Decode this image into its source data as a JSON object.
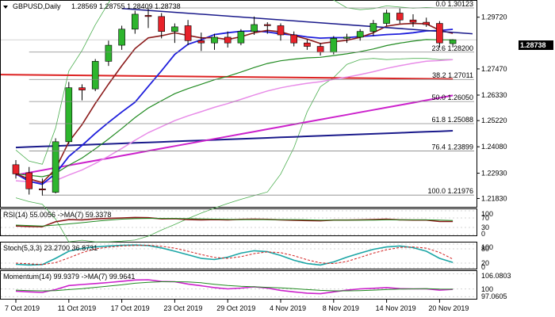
{
  "chart_data": [
    {
      "type": "candlestick",
      "title": "GBPUSD,Daily",
      "ohlc_header": "1.28569 1.28755 1.28409 1.28738",
      "current_price_label": "1.28738",
      "ylim": [
        1.215,
        1.304
      ],
      "y_ticks": [
        "1.29720",
        "1.27470",
        "1.26330",
        "1.25220",
        "1.24080",
        "1.22930",
        "1.21830"
      ],
      "y_tick_values": [
        1.2972,
        1.2747,
        1.2633,
        1.2522,
        1.2408,
        1.2293,
        1.2183
      ],
      "x_ticks": [
        "7 Oct 2019",
        "11 Oct 2019",
        "17 Oct 2019",
        "23 Oct 2019",
        "29 Oct 2019",
        "4 Nov 2019",
        "8 Nov 2019",
        "14 Nov 2019",
        "20 Nov 2019"
      ],
      "x_tick_index": [
        0,
        4,
        8,
        12,
        16,
        20,
        24,
        28,
        32
      ],
      "fib_levels": [
        {
          "label": "0.0 1.30123",
          "value": 1.30123
        },
        {
          "label": "23.6 1.28200",
          "value": 1.282
        },
        {
          "label": "38.2 1.27011",
          "value": 1.27011
        },
        {
          "label": "50.0 1.26050",
          "value": 1.2605
        },
        {
          "label": "61.8 1.25088",
          "value": 1.25088
        },
        {
          "label": "76.4 1.23899",
          "value": 1.23899
        },
        {
          "label": "100.0 1.21976",
          "value": 1.21976
        }
      ],
      "candles": [
        {
          "o": 1.233,
          "h": 1.235,
          "l": 1.227,
          "c": 1.229
        },
        {
          "o": 1.2295,
          "h": 1.232,
          "l": 1.22,
          "c": 1.2225
        },
        {
          "o": 1.2225,
          "h": 1.227,
          "l": 1.2195,
          "c": 1.222
        },
        {
          "o": 1.221,
          "h": 1.2445,
          "l": 1.2205,
          "c": 1.243
        },
        {
          "o": 1.243,
          "h": 1.269,
          "l": 1.242,
          "c": 1.2665
        },
        {
          "o": 1.2665,
          "h": 1.268,
          "l": 1.261,
          "c": 1.2655
        },
        {
          "o": 1.266,
          "h": 1.279,
          "l": 1.265,
          "c": 1.278
        },
        {
          "o": 1.278,
          "h": 1.287,
          "l": 1.276,
          "c": 1.285
        },
        {
          "o": 1.285,
          "h": 1.2935,
          "l": 1.283,
          "c": 1.292
        },
        {
          "o": 1.292,
          "h": 1.3,
          "l": 1.29,
          "c": 1.2985
        },
        {
          "o": 1.298,
          "h": 1.3012,
          "l": 1.2925,
          "c": 1.2975
        },
        {
          "o": 1.2975,
          "h": 1.299,
          "l": 1.288,
          "c": 1.291
        },
        {
          "o": 1.291,
          "h": 1.2945,
          "l": 1.286,
          "c": 1.293
        },
        {
          "o": 1.2935,
          "h": 1.296,
          "l": 1.285,
          "c": 1.287
        },
        {
          "o": 1.287,
          "h": 1.2905,
          "l": 1.2825,
          "c": 1.286
        },
        {
          "o": 1.286,
          "h": 1.29,
          "l": 1.283,
          "c": 1.2885
        },
        {
          "o": 1.2885,
          "h": 1.291,
          "l": 1.284,
          "c": 1.286
        },
        {
          "o": 1.286,
          "h": 1.292,
          "l": 1.285,
          "c": 1.291
        },
        {
          "o": 1.291,
          "h": 1.2975,
          "l": 1.2895,
          "c": 1.294
        },
        {
          "o": 1.294,
          "h": 1.295,
          "l": 1.29,
          "c": 1.2935
        },
        {
          "o": 1.2935,
          "h": 1.2945,
          "l": 1.287,
          "c": 1.2895
        },
        {
          "o": 1.2895,
          "h": 1.291,
          "l": 1.2845,
          "c": 1.286
        },
        {
          "o": 1.286,
          "h": 1.2875,
          "l": 1.283,
          "c": 1.2845
        },
        {
          "o": 1.2845,
          "h": 1.286,
          "l": 1.2805,
          "c": 1.282
        },
        {
          "o": 1.282,
          "h": 1.289,
          "l": 1.281,
          "c": 1.288
        },
        {
          "o": 1.288,
          "h": 1.29,
          "l": 1.286,
          "c": 1.2885
        },
        {
          "o": 1.2885,
          "h": 1.292,
          "l": 1.287,
          "c": 1.291
        },
        {
          "o": 1.291,
          "h": 1.296,
          "l": 1.289,
          "c": 1.2945
        },
        {
          "o": 1.2945,
          "h": 1.3005,
          "l": 1.2935,
          "c": 1.299
        },
        {
          "o": 1.299,
          "h": 1.301,
          "l": 1.2945,
          "c": 1.296
        },
        {
          "o": 1.296,
          "h": 1.2985,
          "l": 1.293,
          "c": 1.295
        },
        {
          "o": 1.295,
          "h": 1.297,
          "l": 1.293,
          "c": 1.294
        },
        {
          "o": 1.2945,
          "h": 1.2955,
          "l": 1.284,
          "c": 1.286
        },
        {
          "o": 1.2857,
          "h": 1.2876,
          "l": 1.2841,
          "c": 1.2874
        }
      ],
      "colors": {
        "bull": "#2db52d",
        "bear": "#e8222a",
        "ma_blue": "#1e1edc",
        "ma_darkred": "#8b1a1a",
        "ma_green": "#228b22",
        "ma_magenta": "#cc22cc",
        "ma_pink": "#e88ce8",
        "ma_navy": "#1a1a8b",
        "ma_red": "#dd2222",
        "bollinger": "#4caf50",
        "trend": "#1a1a8b",
        "ruler": "#000000"
      }
    },
    {
      "type": "line",
      "title": "RSI(14) 55.0056 ->MA(7) 59.3378",
      "y_ticks": [
        "100",
        "70",
        "30",
        "0"
      ],
      "ylim": [
        0,
        100
      ],
      "series": [
        {
          "values": [
            36,
            34,
            33,
            54,
            63,
            62,
            66,
            68,
            70,
            72,
            71,
            66,
            67,
            63,
            62,
            63,
            62,
            64,
            65,
            64,
            62,
            60,
            59,
            58,
            61,
            61,
            62,
            63,
            65,
            62,
            61,
            61,
            55,
            55
          ]
        },
        {
          "values": [
            40,
            38,
            36,
            40,
            45,
            50,
            56,
            61,
            65,
            67,
            68,
            68,
            68,
            67,
            66,
            65,
            64,
            63,
            63,
            63,
            63,
            63,
            62,
            61,
            61,
            61,
            61,
            61,
            62,
            62,
            62,
            62,
            61,
            59
          ]
        }
      ]
    },
    {
      "type": "line",
      "title": "Stoch(5,3,3) 23.2700 36.8731",
      "y_ticks": [
        "100",
        "80",
        "20",
        "0"
      ],
      "ylim": [
        0,
        100
      ],
      "series": [
        {
          "values": [
            15,
            12,
            14,
            40,
            70,
            82,
            88,
            92,
            95,
            96,
            94,
            84,
            70,
            55,
            40,
            35,
            45,
            62,
            72,
            68,
            52,
            32,
            18,
            12,
            25,
            45,
            62,
            78,
            88,
            92,
            85,
            70,
            40,
            23
          ]
        },
        {
          "values": [
            20,
            17,
            14,
            22,
            42,
            64,
            80,
            87,
            92,
            94,
            95,
            91,
            83,
            70,
            56,
            44,
            40,
            47,
            60,
            67,
            64,
            51,
            34,
            21,
            18,
            27,
            44,
            62,
            76,
            86,
            88,
            83,
            65,
            37
          ]
        }
      ]
    },
    {
      "type": "line",
      "title": "Momentum(14) 99.9379 ->MA(7) 99.9641",
      "y_ticks": [
        "106.0803",
        "100",
        "97.0605"
      ],
      "ylim": [
        96.5,
        106.5
      ],
      "series": [
        {
          "values": [
            99.2,
            98.9,
            98.7,
            99.8,
            101.4,
            101.8,
            102.2,
            102.6,
            103.1,
            103.6,
            103.7,
            103.0,
            102.9,
            102.0,
            101.3,
            100.6,
            100.1,
            100.4,
            100.9,
            100.4,
            99.5,
            98.9,
            98.4,
            98.2,
            98.9,
            99.6,
            100.1,
            100.3,
            100.6,
            100.2,
            100.1,
            100.1,
            99.6,
            99.9
          ]
        },
        {
          "values": [
            99.6,
            99.4,
            99.3,
            99.4,
            99.8,
            100.2,
            100.7,
            101.2,
            101.7,
            102.3,
            102.7,
            102.9,
            102.9,
            102.8,
            102.5,
            101.9,
            101.4,
            101.1,
            100.9,
            100.7,
            100.5,
            100.2,
            99.8,
            99.5,
            99.3,
            99.3,
            99.4,
            99.6,
            99.8,
            100.0,
            100.1,
            100.2,
            100.0,
            99.96
          ]
        }
      ]
    }
  ]
}
